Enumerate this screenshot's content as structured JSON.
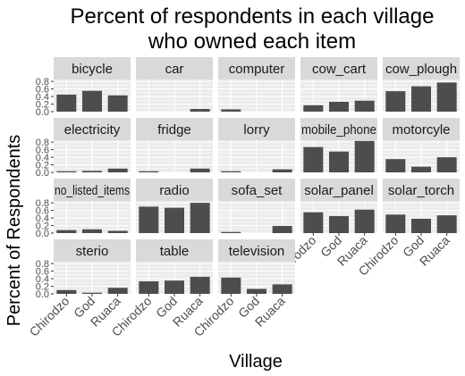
{
  "chart_data": {
    "type": "bar",
    "title_lines": [
      "Percent of respondents in each village",
      "who owned each item"
    ],
    "xlabel": "Village",
    "ylabel": "Percent of Respondents",
    "categories": [
      "Chirodzo",
      "God",
      "Ruaca"
    ],
    "y_ticks": [
      "0.0",
      "0.2",
      "0.4",
      "0.6",
      "0.8"
    ],
    "ylim": [
      0,
      0.85
    ],
    "bar_color": "#4d4d4d",
    "panel_bg": "#ebebeb",
    "strip_bg": "#d9d9d9",
    "panels": [
      {
        "name": "bicycle",
        "values": [
          0.45,
          0.55,
          0.43
        ]
      },
      {
        "name": "car",
        "values": [
          0.0,
          0.0,
          0.07
        ]
      },
      {
        "name": "computer",
        "values": [
          0.06,
          0.0,
          0.0
        ]
      },
      {
        "name": "cow_cart",
        "values": [
          0.17,
          0.26,
          0.29
        ]
      },
      {
        "name": "cow_plough",
        "values": [
          0.54,
          0.67,
          0.77
        ]
      },
      {
        "name": "electricity",
        "values": [
          0.03,
          0.04,
          0.1
        ]
      },
      {
        "name": "fridge",
        "values": [
          0.03,
          0.0,
          0.1
        ]
      },
      {
        "name": "lorry",
        "values": [
          0.03,
          0.0,
          0.08
        ]
      },
      {
        "name": "mobile_phone",
        "values": [
          0.67,
          0.55,
          0.83
        ]
      },
      {
        "name": "motorcyle",
        "values": [
          0.35,
          0.15,
          0.4
        ]
      },
      {
        "name": "no_listed_items",
        "values": [
          0.08,
          0.1,
          0.06
        ]
      },
      {
        "name": "radio",
        "values": [
          0.7,
          0.67,
          0.8
        ]
      },
      {
        "name": "sofa_set",
        "values": [
          0.03,
          0.0,
          0.19
        ]
      },
      {
        "name": "solar_panel",
        "values": [
          0.55,
          0.45,
          0.62
        ]
      },
      {
        "name": "solar_torch",
        "values": [
          0.49,
          0.38,
          0.47
        ]
      },
      {
        "name": "sterio",
        "values": [
          0.1,
          0.03,
          0.16
        ]
      },
      {
        "name": "table",
        "values": [
          0.33,
          0.35,
          0.45
        ]
      },
      {
        "name": "television",
        "values": [
          0.43,
          0.13,
          0.25
        ]
      }
    ]
  }
}
